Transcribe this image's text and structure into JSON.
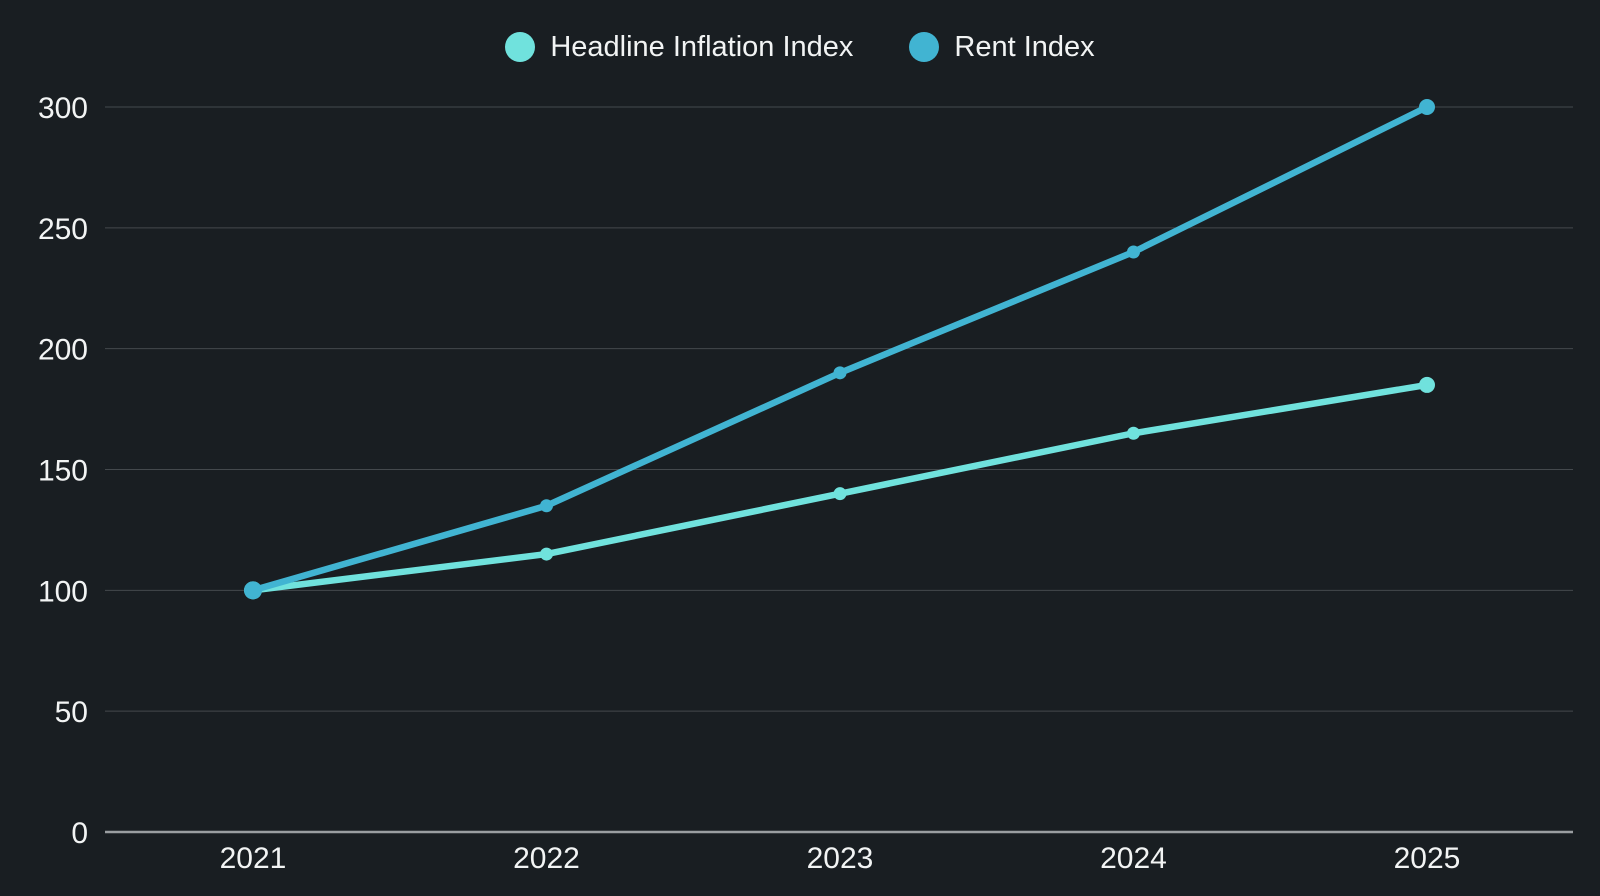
{
  "page": {
    "background_color": "#191e22",
    "text_color": "#f2f4f4",
    "grid_color": "#44494d",
    "axis_color": "#9a9ea1"
  },
  "chart_data": {
    "type": "line",
    "title": "",
    "xlabel": "",
    "ylabel": "",
    "categories": [
      "2021",
      "2022",
      "2023",
      "2024",
      "2025"
    ],
    "series": [
      {
        "name": "Headline Inflation Index",
        "color": "#70e2dd",
        "values": [
          100,
          115,
          140,
          165,
          185
        ]
      },
      {
        "name": "Rent Index",
        "color": "#41b4d2",
        "values": [
          100,
          135,
          190,
          240,
          300
        ]
      }
    ],
    "ylim": [
      0,
      300
    ],
    "yticks": [
      0,
      50,
      100,
      150,
      200,
      250,
      300
    ],
    "grid": true,
    "legend_position": "top-center"
  }
}
